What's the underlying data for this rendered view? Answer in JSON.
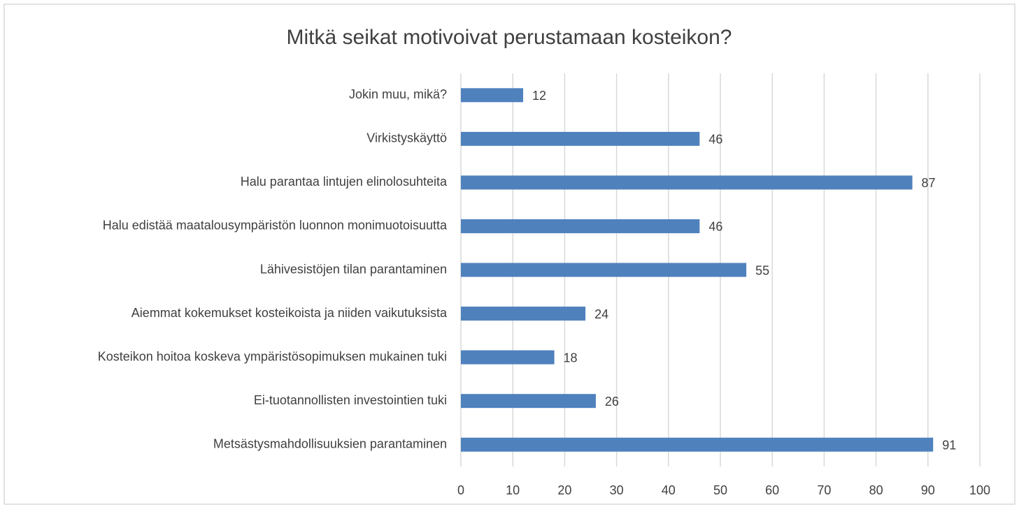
{
  "chart_data": {
    "type": "bar",
    "orientation": "horizontal",
    "title": "Mitkä seikat motivoivat perustamaan kosteikon?",
    "categories": [
      "Jokin muu, mikä?",
      "Virkistyskäyttö",
      "Halu parantaa lintujen elinolosuhteita",
      "Halu edistää maatalousympäristön luonnon monimuotoisuutta",
      "Lähivesistöjen tilan parantaminen",
      "Aiemmat kokemukset kosteikoista ja niiden vaikutuksista",
      "Kosteikon hoitoa koskeva ympäristösopimuksen mukainen tuki",
      "Ei-tuotannollisten investointien tuki",
      "Metsästysmahdollisuuksien parantaminen"
    ],
    "values": [
      12,
      46,
      87,
      46,
      55,
      24,
      18,
      26,
      91
    ],
    "color": "#4f81bd",
    "xlim": [
      0,
      100
    ],
    "xticks": [
      0,
      10,
      20,
      30,
      40,
      50,
      60,
      70,
      80,
      90,
      100
    ],
    "grid": true
  }
}
